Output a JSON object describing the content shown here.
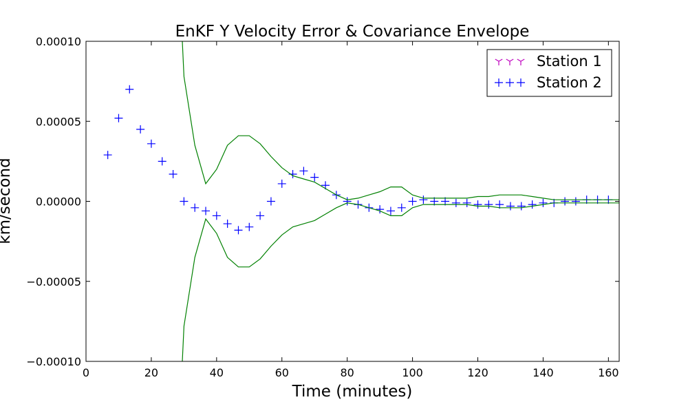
{
  "chart_data": {
    "type": "scatter",
    "title": "EnKF Y Velocity Error & Covariance Envelope",
    "xlabel": "Time (minutes)",
    "ylabel": "km/second",
    "xlim": [
      0,
      163.3
    ],
    "ylim": [
      -0.0001,
      0.0001
    ],
    "xticks": [
      0,
      20,
      40,
      60,
      80,
      100,
      120,
      140,
      160
    ],
    "xtick_labels": [
      "0",
      "20",
      "40",
      "60",
      "80",
      "100",
      "120",
      "140",
      "160"
    ],
    "yticks": [
      -0.0001,
      -5e-05,
      0,
      5e-05,
      0.0001
    ],
    "ytick_labels": [
      "−0.00010",
      "−0.00005",
      "0.00000",
      "0.00005",
      "0.00010"
    ],
    "grid": false,
    "legend_position": "top-right",
    "series": [
      {
        "name": "Station 1",
        "marker": "tri-down",
        "color": "#bf00bf",
        "x": [],
        "y": []
      },
      {
        "name": "Station 2",
        "marker": "plus",
        "color": "#0000ff",
        "x": [
          6.67,
          10,
          13.33,
          16.67,
          20,
          23.33,
          26.67,
          30,
          33.33,
          36.67,
          40,
          43.33,
          46.67,
          50,
          53.33,
          56.67,
          60,
          63.33,
          66.67,
          70,
          73.33,
          76.67,
          80,
          83.33,
          86.67,
          90,
          93.33,
          96.67,
          100,
          103.33,
          106.67,
          110,
          113.33,
          116.67,
          120,
          123.33,
          126.67,
          130,
          133.33,
          136.67,
          140,
          143.33,
          146.67,
          150,
          153.33,
          156.67,
          160
        ],
        "y": [
          2.9e-05,
          5.2e-05,
          7e-05,
          4.5e-05,
          3.6e-05,
          2.5e-05,
          1.7e-05,
          0.0,
          -4e-06,
          -6e-06,
          -9e-06,
          -1.4e-05,
          -1.8e-05,
          -1.6e-05,
          -9e-06,
          0.0,
          1.1e-05,
          1.7e-05,
          1.9e-05,
          1.5e-05,
          1e-05,
          4e-06,
          0.0,
          -2e-06,
          -4e-06,
          -5e-06,
          -6e-06,
          -4e-06,
          0.0,
          1e-06,
          0.0,
          0.0,
          -1e-06,
          -1e-06,
          -2e-06,
          -2e-06,
          -2e-06,
          -3e-06,
          -3e-06,
          -2e-06,
          -1e-06,
          -1e-06,
          0.0,
          0.0,
          1e-06,
          1e-06,
          1e-06
        ]
      },
      {
        "name": "",
        "type": "line",
        "color": "#008000",
        "x": [
          29.5,
          30,
          33.33,
          36.67,
          40,
          43.33,
          46.67,
          50,
          53.33,
          56.67,
          60,
          63.33,
          66.67,
          70,
          73.33,
          76.67,
          80,
          83.33,
          86.67,
          90,
          93.33,
          96.67,
          100,
          103.33,
          106.67,
          110,
          113.33,
          116.67,
          120,
          123.33,
          126.67,
          130,
          133.33,
          136.67,
          140,
          143.33,
          146.67,
          150,
          153.33,
          156.67,
          160,
          163.3
        ],
        "y": [
          0.0001,
          7.8e-05,
          3.5e-05,
          1.1e-05,
          2e-05,
          3.5e-05,
          4.1e-05,
          4.1e-05,
          3.6e-05,
          2.8e-05,
          2.1e-05,
          1.6e-05,
          1.4e-05,
          1.2e-05,
          8e-06,
          4e-06,
          1e-06,
          2e-06,
          4e-06,
          6e-06,
          9e-06,
          9e-06,
          4e-06,
          2e-06,
          2e-06,
          2e-06,
          2e-06,
          2e-06,
          3e-06,
          3e-06,
          4e-06,
          4e-06,
          4e-06,
          3e-06,
          2e-06,
          1e-06,
          1e-06,
          1e-06,
          1e-06,
          1e-06,
          1e-06,
          1e-06
        ]
      },
      {
        "name": "",
        "type": "line",
        "color": "#008000",
        "x": [
          29.5,
          30,
          33.33,
          36.67,
          40,
          43.33,
          46.67,
          50,
          53.33,
          56.67,
          60,
          63.33,
          66.67,
          70,
          73.33,
          76.67,
          80,
          83.33,
          86.67,
          90,
          93.33,
          96.67,
          100,
          103.33,
          106.67,
          110,
          113.33,
          116.67,
          120,
          123.33,
          126.67,
          130,
          133.33,
          136.67,
          140,
          143.33,
          146.67,
          150,
          153.33,
          156.67,
          160,
          163.3
        ],
        "y": [
          -0.0001,
          -7.8e-05,
          -3.5e-05,
          -1.1e-05,
          -2e-05,
          -3.5e-05,
          -4.1e-05,
          -4.1e-05,
          -3.6e-05,
          -2.8e-05,
          -2.1e-05,
          -1.6e-05,
          -1.4e-05,
          -1.2e-05,
          -8e-06,
          -4e-06,
          -1e-06,
          -2e-06,
          -4e-06,
          -6e-06,
          -9e-06,
          -9e-06,
          -4e-06,
          -2e-06,
          -2e-06,
          -2e-06,
          -2e-06,
          -2e-06,
          -3e-06,
          -3e-06,
          -4e-06,
          -4e-06,
          -4e-06,
          -3e-06,
          -2e-06,
          -1e-06,
          -1e-06,
          -1e-06,
          -1e-06,
          -1e-06,
          -1e-06,
          -1e-06
        ]
      }
    ]
  }
}
